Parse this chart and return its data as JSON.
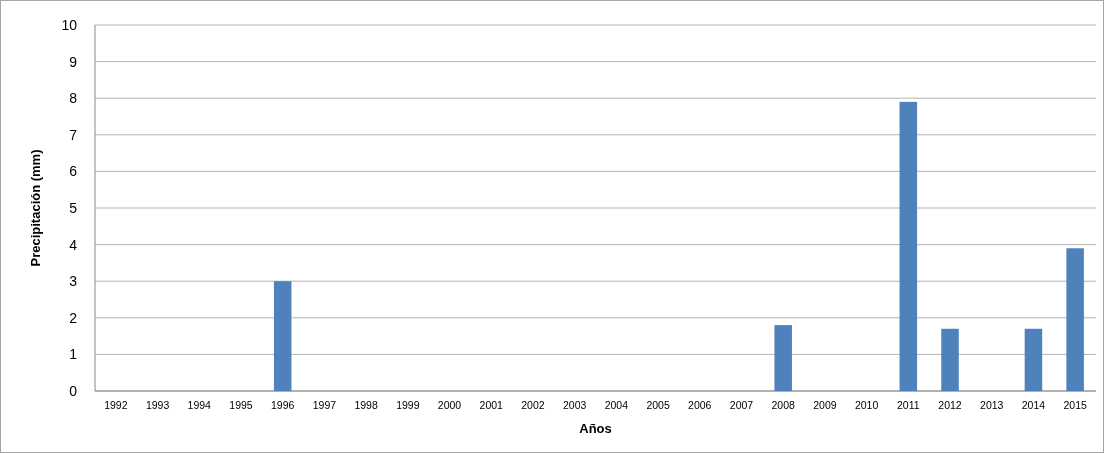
{
  "chart_data": {
    "type": "bar",
    "xlabel": "Años",
    "ylabel": "Precipitación (mm)",
    "categories": [
      "1992",
      "1993",
      "1994",
      "1995",
      "1996",
      "1997",
      "1998",
      "1999",
      "2000",
      "2001",
      "2002",
      "2003",
      "2004",
      "2005",
      "2006",
      "2007",
      "2008",
      "2009",
      "2010",
      "2011",
      "2012",
      "2013",
      "2014",
      "2015"
    ],
    "values": [
      0,
      0,
      0,
      0,
      3.0,
      0,
      0,
      0,
      0,
      0,
      0,
      0,
      0,
      0,
      0,
      0,
      1.8,
      0,
      0,
      7.9,
      1.7,
      0,
      1.7,
      3.9
    ],
    "color": "#4f81bd",
    "ylim": [
      0,
      10
    ],
    "yticks": [
      0,
      1,
      2,
      3,
      4,
      5,
      6,
      7,
      8,
      9,
      10
    ],
    "grid": "y"
  }
}
